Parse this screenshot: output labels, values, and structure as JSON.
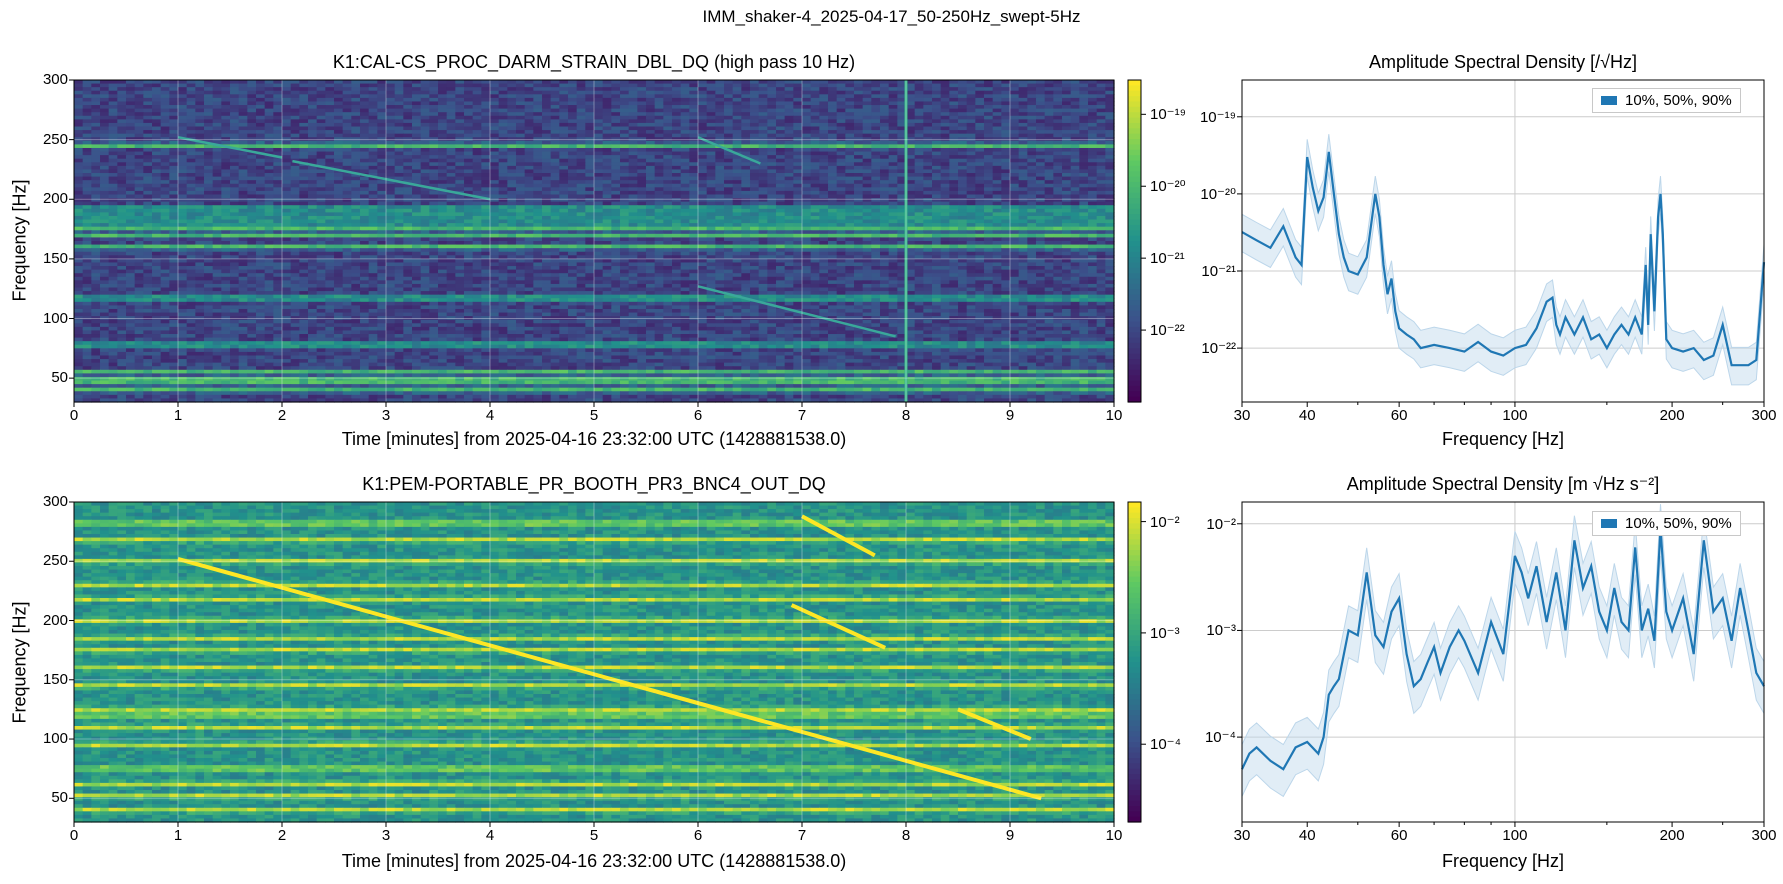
{
  "figure": {
    "suptitle": "IMM_shaker-4_2025-04-17_50-250Hz_swept-5Hz"
  },
  "colors": {
    "series": "#1f77b4",
    "band": "#bcd6ea",
    "grid": "#cccccc",
    "colormap": [
      "#440154",
      "#3b528b",
      "#21918c",
      "#5ec962",
      "#fde725"
    ]
  },
  "chart_data": [
    {
      "type": "heatmap",
      "title": "K1:CAL-CS_PROC_DARM_STRAIN_DBL_DQ (high pass 10 Hz)",
      "xlabel": "Time [minutes] from 2025-04-16 23:32:00 UTC (1428881538.0)",
      "ylabel": "Frequency [Hz]",
      "xlim": [
        0,
        10
      ],
      "ylim": [
        30,
        300
      ],
      "xticks": [
        "0",
        "1",
        "2",
        "3",
        "4",
        "5",
        "6",
        "7",
        "8",
        "9",
        "10"
      ],
      "yticks": [
        "50",
        "100",
        "150",
        "200",
        "250",
        "300"
      ],
      "grid": true,
      "colorbar": {
        "scale": "log",
        "range": [
          1e-23,
          3e-19
        ],
        "ticks": [
          "10⁻¹⁹",
          "10⁻²⁰",
          "10⁻²¹",
          "10⁻²²"
        ]
      },
      "lines_hz": [
        40,
        46,
        50,
        55,
        78,
        117,
        160,
        170,
        175,
        180,
        186,
        192,
        245
      ],
      "sweep": [
        {
          "t": [
            1.0,
            2.0
          ],
          "f": [
            252,
            235
          ]
        },
        {
          "t": [
            2.1,
            4.0
          ],
          "f": [
            232,
            200
          ]
        },
        {
          "t": [
            6.0,
            7.9
          ],
          "f": [
            127,
            85
          ]
        },
        {
          "t": [
            6.0,
            6.6
          ],
          "f": [
            252,
            230
          ]
        }
      ],
      "glitch_t": 8.0
    },
    {
      "type": "line",
      "title": "Amplitude Spectral Density [/√Hz]",
      "xlabel": "Frequency [Hz]",
      "ylabel": "",
      "xscale": "log",
      "yscale": "log",
      "xlim": [
        30,
        300
      ],
      "ylim": [
        2e-23,
        3e-19
      ],
      "xticks": [
        "30",
        "40",
        "60",
        "100",
        "200",
        "300"
      ],
      "yticks": [
        "10⁻¹⁹",
        "10⁻²⁰",
        "10⁻²¹",
        "10⁻²²"
      ],
      "legend": {
        "label": "10%, 50%, 90%",
        "position": "top-right"
      },
      "series": [
        {
          "name": "10%, 50%, 90%",
          "x": [
            30,
            32,
            34,
            36,
            38,
            39,
            40,
            41,
            42,
            43,
            44,
            45,
            46,
            47,
            48,
            50,
            52,
            54,
            55,
            56,
            57,
            58,
            59,
            60,
            62,
            64,
            66,
            70,
            75,
            80,
            85,
            90,
            95,
            100,
            105,
            110,
            115,
            118,
            120,
            122,
            125,
            130,
            135,
            140,
            145,
            150,
            155,
            160,
            165,
            170,
            175,
            178,
            180,
            182,
            185,
            188,
            190,
            192,
            195,
            200,
            210,
            220,
            230,
            240,
            250,
            260,
            270,
            280,
            290,
            300
          ],
          "values": [
            3.2e-21,
            2.5e-21,
            2e-21,
            3.8e-21,
            1.5e-21,
            1.2e-21,
            3e-20,
            1.2e-20,
            6e-21,
            9e-21,
            3.5e-20,
            1e-20,
            3e-21,
            1.5e-21,
            1e-21,
            9e-22,
            1.5e-21,
            1e-20,
            5e-21,
            1.2e-21,
            5e-22,
            8e-22,
            3e-22,
            1.8e-22,
            1.5e-22,
            1.3e-22,
            1e-22,
            1.1e-22,
            1e-22,
            9e-23,
            1.2e-22,
            9e-23,
            8e-23,
            1e-22,
            1.1e-22,
            1.8e-22,
            4e-22,
            4.5e-22,
            2e-22,
            1.5e-22,
            2.5e-22,
            1.5e-22,
            2.5e-22,
            1.3e-22,
            1.5e-22,
            1e-22,
            1.5e-22,
            2e-22,
            1.5e-22,
            2.5e-22,
            1.5e-22,
            1.2e-21,
            2e-22,
            3e-21,
            3e-22,
            5e-21,
            1e-20,
            3e-21,
            1.3e-22,
            1e-22,
            9e-23,
            1e-22,
            7e-23,
            8e-23,
            2e-22,
            6e-23,
            6e-23,
            6e-23,
            7e-23,
            1.3e-21
          ]
        }
      ]
    },
    {
      "type": "heatmap",
      "title": "K1:PEM-PORTABLE_PR_BOOTH_PR3_BNC4_OUT_DQ",
      "xlabel": "Time [minutes] from 2025-04-16 23:32:00 UTC (1428881538.0)",
      "ylabel": "Frequency [Hz]",
      "xlim": [
        0,
        10
      ],
      "ylim": [
        30,
        300
      ],
      "xticks": [
        "0",
        "1",
        "2",
        "3",
        "4",
        "5",
        "6",
        "7",
        "8",
        "9",
        "10"
      ],
      "yticks": [
        "50",
        "100",
        "150",
        "200",
        "250",
        "300"
      ],
      "grid": true,
      "colorbar": {
        "scale": "log",
        "range": [
          2e-05,
          0.015
        ],
        "ticks": [
          "10⁻²",
          "10⁻³",
          "10⁻⁴"
        ]
      },
      "lines_hz": [
        40,
        52,
        62,
        75,
        95,
        110,
        120,
        125,
        145,
        160,
        175,
        185,
        200,
        218,
        230,
        250,
        268,
        282
      ],
      "sweep": [
        {
          "t": [
            1.0,
            9.3
          ],
          "f": [
            252,
            50
          ]
        },
        {
          "t": [
            7.0,
            7.7
          ],
          "f": [
            288,
            255
          ]
        },
        {
          "t": [
            6.9,
            7.8
          ],
          "f": [
            213,
            177
          ]
        },
        {
          "t": [
            8.5,
            9.2
          ],
          "f": [
            125,
            100
          ]
        }
      ]
    },
    {
      "type": "line",
      "title": "Amplitude Spectral Density [m √Hz s⁻²]",
      "xlabel": "Frequency [Hz]",
      "ylabel": "",
      "xscale": "log",
      "yscale": "log",
      "xlim": [
        30,
        300
      ],
      "ylim": [
        1.6e-05,
        0.016
      ],
      "xticks": [
        "30",
        "40",
        "60",
        "100",
        "200",
        "300"
      ],
      "yticks": [
        "10⁻²",
        "10⁻³",
        "10⁻⁴"
      ],
      "legend": {
        "label": "10%, 50%, 90%",
        "position": "top-right"
      },
      "series": [
        {
          "name": "10%, 50%, 90%",
          "x": [
            30,
            31,
            32,
            34,
            36,
            38,
            40,
            42,
            43,
            44,
            45,
            46,
            48,
            50,
            52,
            54,
            56,
            58,
            60,
            62,
            64,
            66,
            68,
            70,
            72,
            75,
            78,
            80,
            85,
            90,
            95,
            100,
            103,
            106,
            110,
            115,
            120,
            125,
            130,
            135,
            140,
            145,
            150,
            155,
            160,
            165,
            170,
            175,
            180,
            185,
            190,
            195,
            200,
            210,
            220,
            230,
            240,
            250,
            260,
            270,
            280,
            290,
            300
          ],
          "values": [
            5e-05,
            7e-05,
            8e-05,
            6e-05,
            5e-05,
            8e-05,
            9e-05,
            7e-05,
            0.0001,
            0.00025,
            0.0003,
            0.00035,
            0.001,
            0.0009,
            0.0035,
            0.0009,
            0.0007,
            0.0015,
            0.002,
            0.0006,
            0.0003,
            0.00035,
            0.0005,
            0.0007,
            0.0004,
            0.0007,
            0.001,
            0.0008,
            0.0004,
            0.0012,
            0.0006,
            0.005,
            0.0035,
            0.002,
            0.004,
            0.0012,
            0.0035,
            0.001,
            0.007,
            0.0025,
            0.004,
            0.0015,
            0.001,
            0.0025,
            0.0012,
            0.001,
            0.006,
            0.001,
            0.0016,
            0.0008,
            0.009,
            0.0015,
            0.001,
            0.002,
            0.0006,
            0.007,
            0.0015,
            0.002,
            0.0008,
            0.0025,
            0.001,
            0.0004,
            0.0003
          ]
        }
      ]
    }
  ]
}
